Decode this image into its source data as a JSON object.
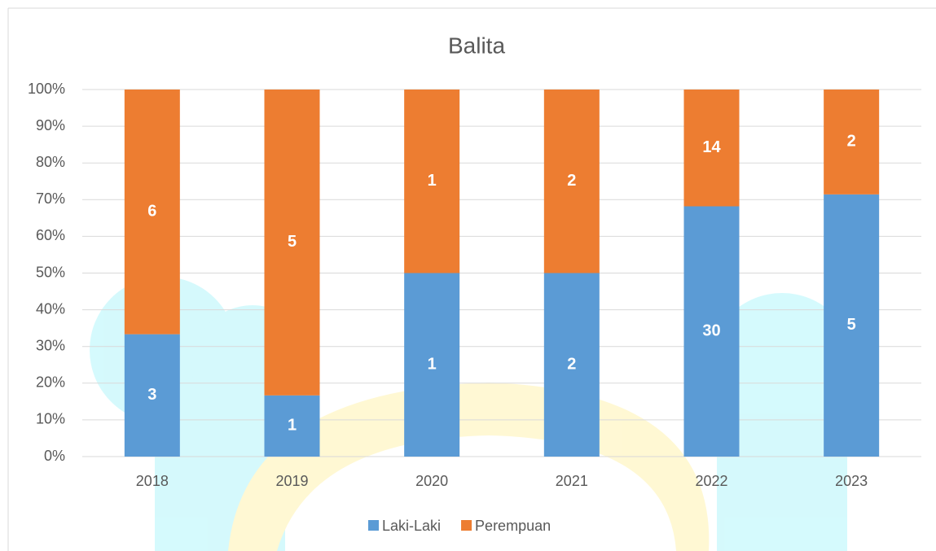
{
  "chart_data": {
    "type": "bar",
    "stacking": "percent",
    "title": "Balita",
    "categories": [
      "2018",
      "2019",
      "2020",
      "2021",
      "2022",
      "2023"
    ],
    "series": [
      {
        "name": "Laki-Laki",
        "color": "#5b9bd5",
        "values": [
          3,
          1,
          1,
          2,
          30,
          5
        ]
      },
      {
        "name": "Perempuan",
        "color": "#ed7d31",
        "values": [
          6,
          5,
          1,
          2,
          14,
          2
        ]
      }
    ],
    "ylim": [
      0,
      100
    ],
    "yticks": [
      {
        "value": 0,
        "label": "0%"
      },
      {
        "value": 10,
        "label": "10%"
      },
      {
        "value": 20,
        "label": "20%"
      },
      {
        "value": 30,
        "label": "30%"
      },
      {
        "value": 40,
        "label": "40%"
      },
      {
        "value": 50,
        "label": "50%"
      },
      {
        "value": 60,
        "label": "60%"
      },
      {
        "value": 70,
        "label": "70%"
      },
      {
        "value": 80,
        "label": "80%"
      },
      {
        "value": 90,
        "label": "90%"
      },
      {
        "value": 100,
        "label": "100%"
      }
    ],
    "grid": true,
    "legend": "bottom"
  }
}
